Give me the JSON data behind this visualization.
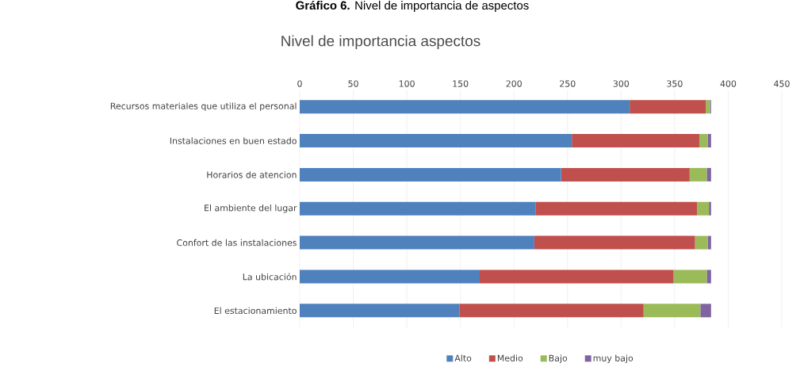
{
  "chart_data": {
    "type": "bar",
    "orientation": "horizontal",
    "stacked": true,
    "title": "Nivel de importancia aspectos",
    "annotations": [
      "**Gráfico 6.** Nivel de importancia de aspectos"
    ],
    "categories": [
      "Recursos materiales que utiliza el personal",
      "Instalaciones en buen estado",
      "Horarios de atencion",
      "El ambiente del lugar",
      "Confort de las instalaciones",
      "La ubicación",
      "El estacionamiento"
    ],
    "series": [
      {
        "name": "Alto",
        "color": "#4f81bd",
        "values": [
          308,
          254,
          244,
          220,
          219,
          168,
          149
        ]
      },
      {
        "name": "Medio",
        "color": "#c0504d",
        "values": [
          71,
          119,
          120,
          151,
          150,
          181,
          172
        ]
      },
      {
        "name": "Bajo",
        "color": "#9bbb59",
        "values": [
          4,
          8,
          16,
          11,
          12,
          31,
          53
        ]
      },
      {
        "name": "muy bajo",
        "color": "#8064a2",
        "values": [
          1,
          3,
          4,
          2,
          3,
          4,
          10
        ]
      }
    ],
    "xlim": [
      0,
      450
    ],
    "xticks": [
      0,
      50,
      100,
      150,
      200,
      250,
      300,
      350,
      400,
      450
    ],
    "grid": "x",
    "legend": "bottom"
  }
}
